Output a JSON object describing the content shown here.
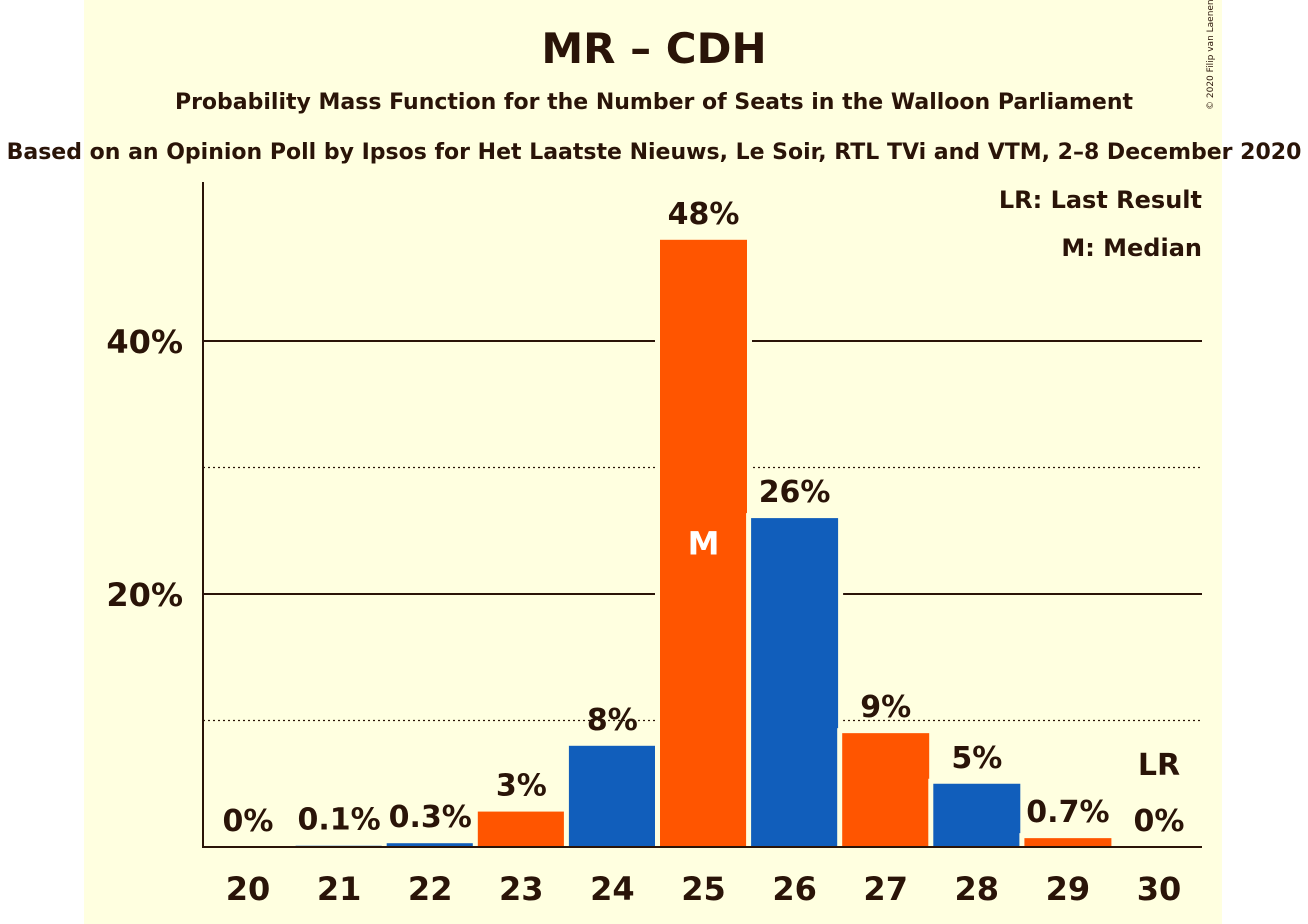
{
  "copyright": "© 2020 Filip van Laenen",
  "chart_data": {
    "type": "bar",
    "title": "MR – CDH",
    "subtitle": "Probability Mass Function for the Number of Seats in the Walloon Parliament",
    "source": "Based on an Opinion Poll by Ipsos for Het Laatste Nieuws, Le Soir, RTL TVi and VTM, 2–8 December 2020",
    "categories": [
      "20",
      "21",
      "22",
      "23",
      "24",
      "25",
      "26",
      "27",
      "28",
      "29",
      "30"
    ],
    "values": [
      0,
      0.1,
      0.3,
      2.8,
      8,
      48,
      26,
      9,
      5,
      0.7,
      0
    ],
    "labels": [
      "0%",
      "0.1%",
      "0.3%",
      "3%",
      "8%",
      "48%",
      "26%",
      "9%",
      "5%",
      "0.7%",
      "0%"
    ],
    "colors": [
      "#ff5500",
      "#115ebb",
      "#115ebb",
      "#ff5500",
      "#115ebb",
      "#ff5500",
      "#115ebb",
      "#ff5500",
      "#115ebb",
      "#ff5500",
      "#115ebb"
    ],
    "median_index": 5,
    "median_marker": "M",
    "last_result_index": 10,
    "last_result_marker": "LR",
    "yticks": [
      20,
      40
    ],
    "ytick_labels": [
      "20%",
      "40%"
    ],
    "minor_gridlines": [
      10,
      30
    ],
    "ylim": [
      0,
      52
    ],
    "legend": [
      "LR: Last Result",
      "M: Median"
    ],
    "legend_position": "top-right",
    "grid": true
  }
}
